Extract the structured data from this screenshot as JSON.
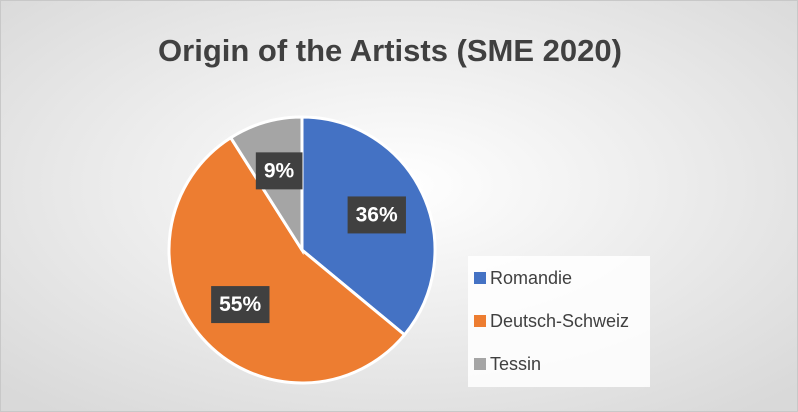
{
  "chart_data": {
    "type": "pie",
    "title": "Origin of the Artists (SME 2020)",
    "categories": [
      "Romandie",
      "Deutsch-Schweiz",
      "Tessin"
    ],
    "values": [
      36,
      55,
      9
    ],
    "value_labels": [
      "36%",
      "55%",
      "9%"
    ],
    "colors": [
      "#4472c4",
      "#ed7d31",
      "#a5a5a5"
    ],
    "legend": "right"
  }
}
